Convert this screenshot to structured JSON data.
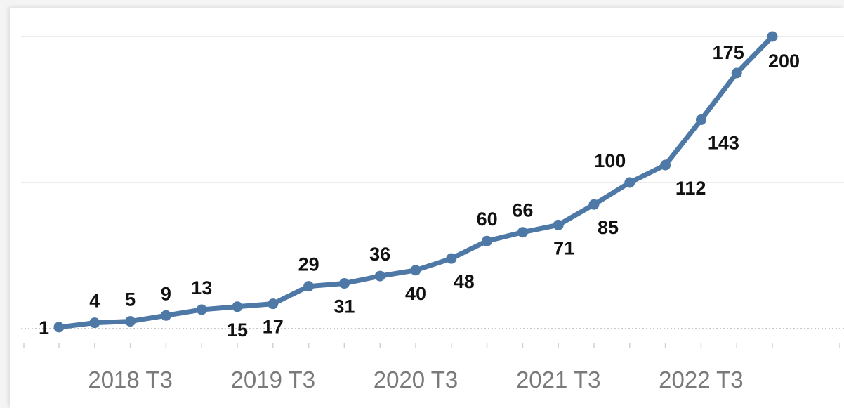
{
  "chart_data": {
    "type": "line",
    "title": "",
    "xlabel": "",
    "ylabel": "",
    "x_tick_labels": [
      "2018 T3",
      "2019 T3",
      "2020 T3",
      "2021 T3",
      "2022 T3"
    ],
    "ylim": [
      0,
      200
    ],
    "grid": true,
    "legend": "none",
    "series": [
      {
        "color": "#4e79a7",
        "values": [
          1,
          4,
          5,
          9,
          13,
          15,
          17,
          29,
          31,
          36,
          40,
          48,
          60,
          66,
          71,
          85,
          100,
          112,
          143,
          175,
          200
        ]
      }
    ]
  }
}
